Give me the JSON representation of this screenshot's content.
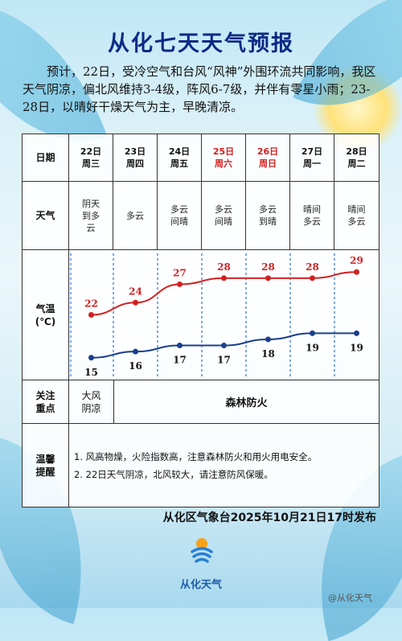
{
  "title": "从化七天天气预报",
  "intro": "预计，22日，受冷空气和台风“风神”外围环流共同影响，我区天气阴凉，偏北风维持3-4级，阵风6-7级，并伴有零星小雨；23-28日，以晴好干燥天气为主，早晚清凉。",
  "table": {
    "labels": {
      "date": "日期",
      "weather": "天气",
      "temp_line1": "气温",
      "temp_line2": "(℃)",
      "focus_line1": "关注",
      "focus_line2": "重点",
      "tips_line1": "温馨",
      "tips_line2": "提醒"
    },
    "days": [
      {
        "date": "22日",
        "weekday": "周三",
        "weather": [
          "阴天",
          "到多",
          "云"
        ],
        "weekend": false
      },
      {
        "date": "23日",
        "weekday": "周四",
        "weather": [
          "多云"
        ],
        "weekend": false
      },
      {
        "date": "24日",
        "weekday": "周五",
        "weather": [
          "多云",
          "间晴"
        ],
        "weekend": false
      },
      {
        "date": "25日",
        "weekday": "周六",
        "weather": [
          "多云",
          "间晴"
        ],
        "weekend": true
      },
      {
        "date": "26日",
        "weekday": "周日",
        "weather": [
          "多云",
          "到晴"
        ],
        "weekend": true
      },
      {
        "date": "27日",
        "weekday": "周一",
        "weather": [
          "晴间",
          "多云"
        ],
        "weekend": false
      },
      {
        "date": "28日",
        "weekday": "周二",
        "weather": [
          "晴间",
          "多云"
        ],
        "weekend": false
      }
    ],
    "focus": {
      "first_line1": "大风",
      "first_line2": "阴凉",
      "rest": "森林防火"
    },
    "tips": [
      "1. 风高物燥，火险指数高，注意森林防火和用火用电安全。",
      "2. 22日天气阴凉，北风较大，请注意防风保暖。"
    ]
  },
  "chart_data": {
    "type": "line",
    "x": [
      "22日",
      "23日",
      "24日",
      "25日",
      "26日",
      "27日",
      "28日"
    ],
    "series": [
      {
        "values": [
          22,
          24,
          27,
          28,
          28,
          28,
          29
        ],
        "color": "#d42020"
      },
      {
        "values": [
          15,
          16,
          17,
          17,
          18,
          19,
          19
        ],
        "color": "#1a3f8c"
      }
    ],
    "ylim": [
      13,
      31
    ]
  },
  "footer": "从化区气象台2025年10月21日17时发布",
  "logo_text": "从化天气",
  "watermark": "@从化天气",
  "colors": {
    "title": "#0d2a86",
    "weekend": "#d41f1f",
    "high": "#d42020",
    "low": "#1a3f8c"
  }
}
